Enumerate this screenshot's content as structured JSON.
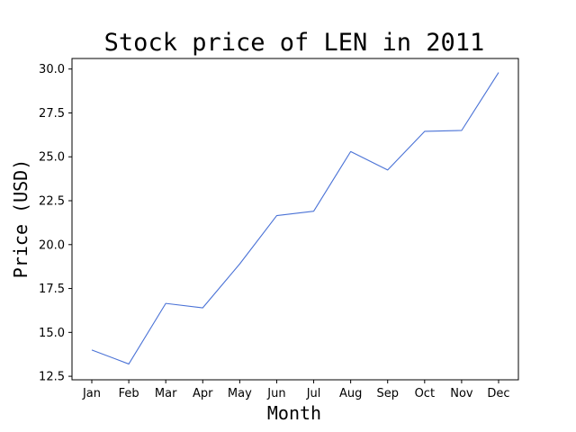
{
  "chart_data": {
    "type": "line",
    "title": "Stock price of LEN in 2011",
    "xlabel": "Month",
    "ylabel": "Price (USD)",
    "categories": [
      "Jan",
      "Feb",
      "Mar",
      "Apr",
      "May",
      "Jun",
      "Jul",
      "Aug",
      "Sep",
      "Oct",
      "Nov",
      "Dec"
    ],
    "series": [
      {
        "values": [
          14.0,
          13.2,
          16.65,
          16.4,
          18.9,
          21.65,
          21.9,
          25.3,
          24.25,
          26.45,
          26.5,
          29.8
        ],
        "color": "#4a72d6"
      }
    ],
    "ylim": [
      12.3,
      30.6
    ],
    "yticks": [
      "12.5",
      "15.0",
      "17.5",
      "20.0",
      "22.5",
      "25.0",
      "27.5",
      "30.0"
    ],
    "grid": false,
    "legend": false
  }
}
